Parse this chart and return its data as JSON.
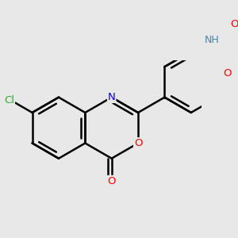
{
  "bg_color": "#e8e8e8",
  "bond_color": "#000000",
  "bond_width": 1.8,
  "atom_colors": {
    "O": "#ff0000",
    "N": "#0000ff",
    "Cl": "#33aa33",
    "NH": "#4488aa"
  },
  "font_size": 9.5,
  "figsize": [
    3.0,
    3.0
  ],
  "dpi": 100
}
